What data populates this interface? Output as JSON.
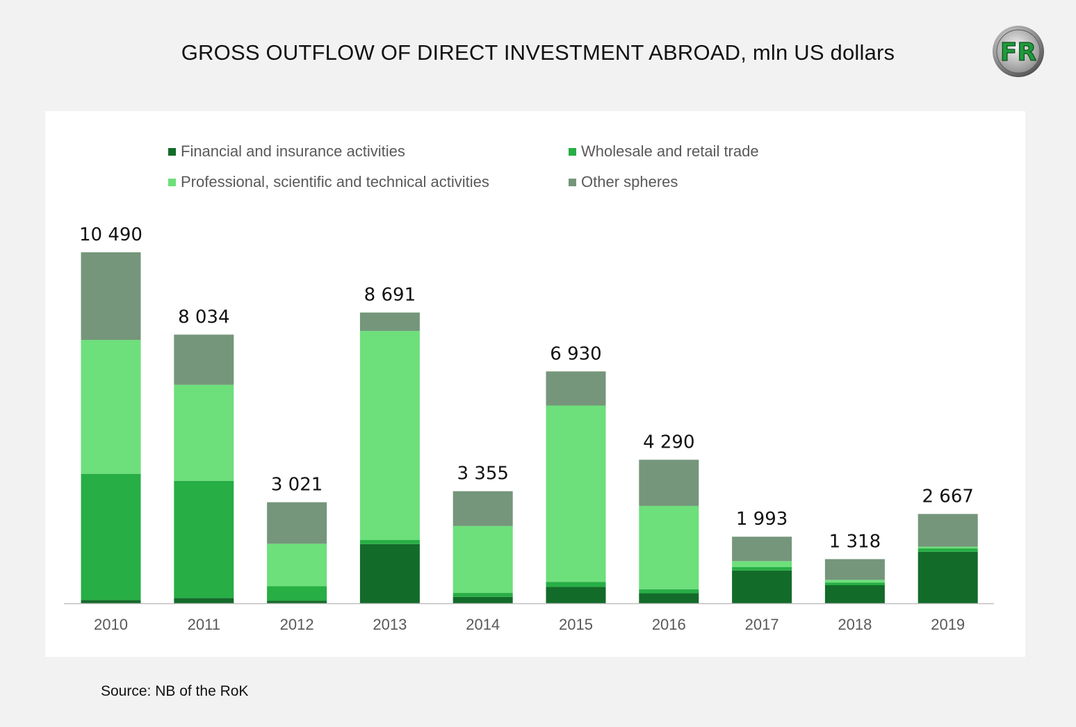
{
  "header": {
    "title": "GROSS OUTFLOW OF DIRECT INVESTMENT ABROAD, mln US dollars",
    "logo_text": "FR"
  },
  "footer": {
    "source": "Source: NB of the RoK"
  },
  "colors": {
    "financial": "#136b29",
    "wholesale": "#27ae45",
    "professional": "#6ddf7b",
    "other": "#75967b",
    "axis": "#bfbfbf"
  },
  "chart_data": {
    "type": "bar",
    "stacked": true,
    "categories": [
      "2010",
      "2011",
      "2012",
      "2013",
      "2014",
      "2015",
      "2016",
      "2017",
      "2018",
      "2019"
    ],
    "series": [
      {
        "name": "Financial and insurance activities",
        "color_key": "financial",
        "values": [
          100,
          160,
          80,
          1770,
          190,
          490,
          300,
          980,
          540,
          1540
        ]
      },
      {
        "name": "Wholesale and retail trade",
        "color_key": "wholesale",
        "values": [
          3770,
          3500,
          430,
          120,
          120,
          150,
          120,
          100,
          80,
          100
        ]
      },
      {
        "name": "Professional, scientific and technical activities",
        "color_key": "professional",
        "values": [
          4000,
          2870,
          1270,
          6250,
          2000,
          5270,
          2490,
          180,
          80,
          50
        ]
      },
      {
        "name": "Other spheres",
        "color_key": "other",
        "values": [
          2620,
          1500,
          1240,
          550,
          1040,
          1020,
          1380,
          730,
          620,
          980
        ]
      }
    ],
    "totals": [
      10490,
      8034,
      3021,
      8691,
      3355,
      6930,
      4290,
      1993,
      1318,
      2667
    ],
    "total_labels": [
      "10 490",
      "8 034",
      "3 021",
      "8 691",
      "3 355",
      "6 930",
      "4 290",
      "1 993",
      "1 318",
      "2 667"
    ],
    "legend_position": "top",
    "ylim": [
      0,
      10490
    ],
    "grid": false,
    "xlabel": "",
    "ylabel": ""
  }
}
